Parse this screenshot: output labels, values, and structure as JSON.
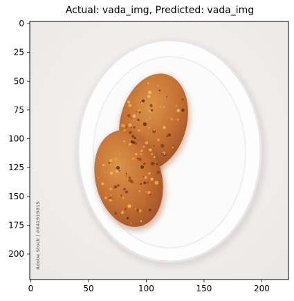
{
  "figure": {
    "title": "Actual: vada_img, Predicted: vada_img",
    "watermark": "Adobe Stock | #642919815",
    "image_description": "two orange-brown fried vada patties on a white oval plate"
  },
  "chart_data": {
    "type": "image",
    "title": "Actual: vada_img, Predicted: vada_img",
    "xlabel": "",
    "ylabel": "",
    "xlim": [
      0,
      224
    ],
    "ylim": [
      224,
      0
    ],
    "x_ticks": [
      0,
      50,
      100,
      150,
      200
    ],
    "y_ticks": [
      0,
      25,
      50,
      75,
      100,
      125,
      150,
      175,
      200
    ],
    "grid": false,
    "colors": {
      "background": "#f3f0ef",
      "plate": "#fdfdfd",
      "plate_rim": "#e8e6e6",
      "vada_fill": "#c9763a",
      "vada_dark": "#9a4f22",
      "vada_light": "#dd9a4e"
    }
  }
}
